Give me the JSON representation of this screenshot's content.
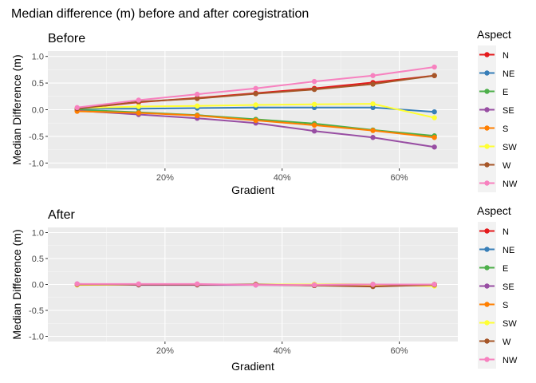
{
  "figure": {
    "title": "Median difference (m) before and after coregistration"
  },
  "chart_data": [
    {
      "type": "line",
      "title": "Before",
      "xlabel": "Gradient",
      "ylabel": "Median Difference (m)",
      "x": [
        5,
        15.5,
        25.5,
        35.5,
        45.5,
        55.5,
        66
      ],
      "xlim": [
        0,
        70
      ],
      "ylim": [
        -1.1,
        1.1
      ],
      "xticks": [
        20,
        40,
        60
      ],
      "xtick_labels": [
        "20%",
        "40%",
        "60%"
      ],
      "yticks": [
        -1.0,
        -0.5,
        0.0,
        0.5,
        1.0
      ],
      "ytick_labels": [
        "-1.0",
        "-0.5",
        "0.0",
        "0.5",
        "1.0"
      ],
      "grid": true,
      "legend": {
        "title": "Aspect",
        "position": "right"
      },
      "series": [
        {
          "name": "N",
          "color": "#E41A1C",
          "values": [
            0.02,
            0.14,
            0.22,
            0.31,
            0.4,
            0.51,
            0.64
          ]
        },
        {
          "name": "NE",
          "color": "#377EB8",
          "values": [
            0.02,
            0.02,
            0.03,
            0.04,
            0.04,
            0.04,
            -0.04
          ]
        },
        {
          "name": "E",
          "color": "#4DAF4A",
          "values": [
            0.0,
            -0.05,
            -0.1,
            -0.18,
            -0.26,
            -0.38,
            -0.49
          ]
        },
        {
          "name": "SE",
          "color": "#984EA3",
          "values": [
            -0.02,
            -0.09,
            -0.16,
            -0.25,
            -0.4,
            -0.52,
            -0.7
          ]
        },
        {
          "name": "S",
          "color": "#FF7F00",
          "values": [
            -0.03,
            -0.06,
            -0.11,
            -0.2,
            -0.29,
            -0.39,
            -0.52
          ]
        },
        {
          "name": "SW",
          "color": "#FFFF33",
          "values": [
            0.03,
            0.06,
            0.07,
            0.09,
            0.1,
            0.11,
            -0.15
          ]
        },
        {
          "name": "W",
          "color": "#A65628",
          "values": [
            0.02,
            0.15,
            0.21,
            0.3,
            0.38,
            0.48,
            0.64
          ]
        },
        {
          "name": "NW",
          "color": "#F781BF",
          "values": [
            0.04,
            0.18,
            0.29,
            0.4,
            0.53,
            0.64,
            0.8
          ]
        }
      ]
    },
    {
      "type": "line",
      "title": "After",
      "xlabel": "Gradient",
      "ylabel": "Median Difference (m)",
      "x": [
        5,
        15.5,
        25.5,
        35.5,
        45.5,
        55.5,
        66
      ],
      "xlim": [
        0,
        70
      ],
      "ylim": [
        -1.1,
        1.1
      ],
      "xticks": [
        20,
        40,
        60
      ],
      "xtick_labels": [
        "20%",
        "40%",
        "60%"
      ],
      "yticks": [
        -1.0,
        -0.5,
        0.0,
        0.5,
        1.0
      ],
      "ytick_labels": [
        "-1.0",
        "-0.5",
        "0.0",
        "0.5",
        "1.0"
      ],
      "grid": true,
      "legend": {
        "title": "Aspect",
        "position": "right"
      },
      "series": [
        {
          "name": "N",
          "color": "#E41A1C",
          "values": [
            0.0,
            0.0,
            0.0,
            0.0,
            -0.01,
            -0.01,
            0.0
          ]
        },
        {
          "name": "NE",
          "color": "#377EB8",
          "values": [
            0.0,
            0.0,
            0.0,
            0.0,
            0.0,
            0.0,
            0.0
          ]
        },
        {
          "name": "E",
          "color": "#4DAF4A",
          "values": [
            0.0,
            0.0,
            0.0,
            0.0,
            -0.01,
            -0.01,
            -0.01
          ]
        },
        {
          "name": "SE",
          "color": "#984EA3",
          "values": [
            0.01,
            -0.01,
            -0.01,
            -0.01,
            -0.02,
            -0.03,
            -0.01
          ]
        },
        {
          "name": "S",
          "color": "#FF7F00",
          "values": [
            0.0,
            0.0,
            0.0,
            0.0,
            0.0,
            0.0,
            0.0
          ]
        },
        {
          "name": "SW",
          "color": "#FFFF33",
          "values": [
            -0.01,
            0.0,
            0.0,
            0.0,
            0.0,
            -0.01,
            -0.03
          ]
        },
        {
          "name": "W",
          "color": "#A65628",
          "values": [
            0.0,
            0.0,
            0.0,
            0.0,
            -0.02,
            -0.04,
            -0.01
          ]
        },
        {
          "name": "NW",
          "color": "#F781BF",
          "values": [
            0.01,
            0.01,
            0.01,
            -0.01,
            -0.01,
            0.0,
            0.0
          ]
        }
      ]
    }
  ]
}
